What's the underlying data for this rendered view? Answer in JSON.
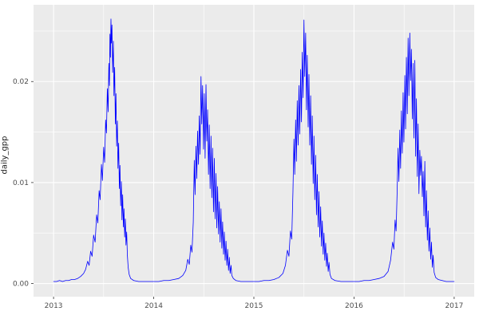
{
  "chart_data": {
    "type": "line",
    "title": "",
    "xlabel": "",
    "ylabel": "daily_gpp",
    "legend_position": "none",
    "grid": true,
    "panel_background": "#ebebeb",
    "figure_background": "#ffffff",
    "grid_color": "#ffffff",
    "tick_label_color": "#4d4d4d",
    "tick_mark_color": "#333333",
    "series_color": "#0000ff",
    "xlim": [
      2012.8,
      2017.2
    ],
    "ylim": [
      -0.0013,
      0.0276
    ],
    "x_ticks": {
      "values": [
        2013,
        2014,
        2015,
        2016,
        2017
      ],
      "labels": [
        "2013",
        "2014",
        "2015",
        "2016",
        "2017"
      ]
    },
    "x_minor": [
      2013.5,
      2014.5,
      2015.5,
      2016.5
    ],
    "y_ticks": {
      "values": [
        0,
        0.01,
        0.02
      ],
      "labels": [
        "0.00",
        "0.01",
        "0.02"
      ]
    },
    "y_minor": [
      0.005,
      0.015,
      0.025
    ],
    "series_name": "daily_gpp",
    "points": [
      [
        2013.0,
        0.0002
      ],
      [
        2013.03,
        0.0002
      ],
      [
        2013.06,
        0.0003
      ],
      [
        2013.09,
        0.0002
      ],
      [
        2013.12,
        0.0003
      ],
      [
        2013.15,
        0.0003
      ],
      [
        2013.18,
        0.0004
      ],
      [
        2013.21,
        0.0004
      ],
      [
        2013.24,
        0.0005
      ],
      [
        2013.27,
        0.0007
      ],
      [
        2013.3,
        0.001
      ],
      [
        2013.32,
        0.0014
      ],
      [
        2013.34,
        0.0022
      ],
      [
        2013.355,
        0.0018
      ],
      [
        2013.37,
        0.0032
      ],
      [
        2013.385,
        0.0027
      ],
      [
        2013.4,
        0.0048
      ],
      [
        2013.415,
        0.0041
      ],
      [
        2013.43,
        0.0068
      ],
      [
        2013.442,
        0.006
      ],
      [
        2013.455,
        0.0092
      ],
      [
        2013.465,
        0.0083
      ],
      [
        2013.478,
        0.0118
      ],
      [
        2013.488,
        0.0102
      ],
      [
        2013.5,
        0.0135
      ],
      [
        2013.51,
        0.012
      ],
      [
        2013.52,
        0.0162
      ],
      [
        2013.528,
        0.0149
      ],
      [
        2013.537,
        0.0193
      ],
      [
        2013.545,
        0.017
      ],
      [
        2013.552,
        0.0218
      ],
      [
        2013.558,
        0.0196
      ],
      [
        2013.563,
        0.0247
      ],
      [
        2013.568,
        0.0224
      ],
      [
        2013.573,
        0.0262
      ],
      [
        2013.578,
        0.0238
      ],
      [
        2013.583,
        0.0256
      ],
      [
        2013.59,
        0.0209
      ],
      [
        2013.597,
        0.024
      ],
      [
        2013.603,
        0.0186
      ],
      [
        2013.61,
        0.0214
      ],
      [
        2013.617,
        0.0158
      ],
      [
        2013.623,
        0.0188
      ],
      [
        2013.63,
        0.0136
      ],
      [
        2013.637,
        0.0161
      ],
      [
        2013.643,
        0.0114
      ],
      [
        2013.65,
        0.0139
      ],
      [
        2013.657,
        0.0094
      ],
      [
        2013.663,
        0.0117
      ],
      [
        2013.67,
        0.0077
      ],
      [
        2013.677,
        0.0101
      ],
      [
        2013.683,
        0.0063
      ],
      [
        2013.69,
        0.0088
      ],
      [
        2013.697,
        0.0056
      ],
      [
        2013.703,
        0.0074
      ],
      [
        2013.71,
        0.0046
      ],
      [
        2013.717,
        0.0064
      ],
      [
        2013.723,
        0.0038
      ],
      [
        2013.73,
        0.0051
      ],
      [
        2013.737,
        0.0028
      ],
      [
        2013.745,
        0.0016
      ],
      [
        2013.755,
        0.0009
      ],
      [
        2013.77,
        0.0005
      ],
      [
        2013.8,
        0.0003
      ],
      [
        2013.85,
        0.0002
      ],
      [
        2013.9,
        0.0002
      ],
      [
        2013.95,
        0.0002
      ],
      [
        2014.0,
        0.0002
      ],
      [
        2014.05,
        0.0002
      ],
      [
        2014.1,
        0.0003
      ],
      [
        2014.15,
        0.0003
      ],
      [
        2014.2,
        0.0004
      ],
      [
        2014.25,
        0.0005
      ],
      [
        2014.29,
        0.0008
      ],
      [
        2014.32,
        0.0013
      ],
      [
        2014.34,
        0.0024
      ],
      [
        2014.355,
        0.0019
      ],
      [
        2014.37,
        0.0038
      ],
      [
        2014.382,
        0.0031
      ],
      [
        2014.395,
        0.0061
      ],
      [
        2014.405,
        0.0122
      ],
      [
        2014.413,
        0.0088
      ],
      [
        2014.422,
        0.0136
      ],
      [
        2014.43,
        0.0104
      ],
      [
        2014.438,
        0.0151
      ],
      [
        2014.447,
        0.0118
      ],
      [
        2014.455,
        0.0166
      ],
      [
        2014.463,
        0.0128
      ],
      [
        2014.472,
        0.0205
      ],
      [
        2014.48,
        0.0158
      ],
      [
        2014.488,
        0.0196
      ],
      [
        2014.497,
        0.0133
      ],
      [
        2014.505,
        0.0188
      ],
      [
        2014.513,
        0.0124
      ],
      [
        2014.522,
        0.0197
      ],
      [
        2014.53,
        0.0141
      ],
      [
        2014.538,
        0.0172
      ],
      [
        2014.547,
        0.0108
      ],
      [
        2014.555,
        0.0157
      ],
      [
        2014.563,
        0.0094
      ],
      [
        2014.572,
        0.0146
      ],
      [
        2014.58,
        0.0085
      ],
      [
        2014.588,
        0.0134
      ],
      [
        2014.597,
        0.0071
      ],
      [
        2014.605,
        0.0124
      ],
      [
        2014.613,
        0.0064
      ],
      [
        2014.622,
        0.0109
      ],
      [
        2014.63,
        0.0055
      ],
      [
        2014.638,
        0.0096
      ],
      [
        2014.647,
        0.0049
      ],
      [
        2014.655,
        0.0081
      ],
      [
        2014.663,
        0.0041
      ],
      [
        2014.672,
        0.0074
      ],
      [
        2014.68,
        0.0035
      ],
      [
        2014.688,
        0.0061
      ],
      [
        2014.697,
        0.0029
      ],
      [
        2014.705,
        0.0051
      ],
      [
        2014.713,
        0.0023
      ],
      [
        2014.722,
        0.0042
      ],
      [
        2014.73,
        0.0018
      ],
      [
        2014.738,
        0.0034
      ],
      [
        2014.747,
        0.0013
      ],
      [
        2014.755,
        0.0026
      ],
      [
        2014.763,
        0.001
      ],
      [
        2014.772,
        0.0018
      ],
      [
        2014.78,
        0.0008
      ],
      [
        2014.795,
        0.0005
      ],
      [
        2014.82,
        0.0003
      ],
      [
        2014.87,
        0.0002
      ],
      [
        2014.93,
        0.0002
      ],
      [
        2015.0,
        0.0002
      ],
      [
        2015.05,
        0.0002
      ],
      [
        2015.1,
        0.0003
      ],
      [
        2015.15,
        0.0003
      ],
      [
        2015.2,
        0.0004
      ],
      [
        2015.25,
        0.0006
      ],
      [
        2015.29,
        0.001
      ],
      [
        2015.315,
        0.0018
      ],
      [
        2015.335,
        0.0033
      ],
      [
        2015.35,
        0.0027
      ],
      [
        2015.365,
        0.0052
      ],
      [
        2015.378,
        0.0044
      ],
      [
        2015.39,
        0.009
      ],
      [
        2015.4,
        0.0143
      ],
      [
        2015.408,
        0.0108
      ],
      [
        2015.417,
        0.0162
      ],
      [
        2015.425,
        0.0121
      ],
      [
        2015.433,
        0.0181
      ],
      [
        2015.442,
        0.0137
      ],
      [
        2015.45,
        0.0196
      ],
      [
        2015.458,
        0.0148
      ],
      [
        2015.467,
        0.0212
      ],
      [
        2015.475,
        0.016
      ],
      [
        2015.483,
        0.0229
      ],
      [
        2015.492,
        0.0184
      ],
      [
        2015.5,
        0.0261
      ],
      [
        2015.508,
        0.0205
      ],
      [
        2015.517,
        0.0248
      ],
      [
        2015.525,
        0.0172
      ],
      [
        2015.533,
        0.0226
      ],
      [
        2015.542,
        0.0155
      ],
      [
        2015.55,
        0.0207
      ],
      [
        2015.558,
        0.0137
      ],
      [
        2015.567,
        0.0186
      ],
      [
        2015.575,
        0.0118
      ],
      [
        2015.583,
        0.0166
      ],
      [
        2015.592,
        0.0099
      ],
      [
        2015.6,
        0.0146
      ],
      [
        2015.608,
        0.0083
      ],
      [
        2015.617,
        0.0127
      ],
      [
        2015.625,
        0.0068
      ],
      [
        2015.633,
        0.0108
      ],
      [
        2015.642,
        0.0056
      ],
      [
        2015.65,
        0.0091
      ],
      [
        2015.658,
        0.0046
      ],
      [
        2015.667,
        0.0076
      ],
      [
        2015.675,
        0.0037
      ],
      [
        2015.683,
        0.0062
      ],
      [
        2015.692,
        0.0029
      ],
      [
        2015.7,
        0.005
      ],
      [
        2015.708,
        0.0023
      ],
      [
        2015.717,
        0.004
      ],
      [
        2015.725,
        0.0017
      ],
      [
        2015.733,
        0.003
      ],
      [
        2015.742,
        0.0012
      ],
      [
        2015.75,
        0.0021
      ],
      [
        2015.76,
        0.0009
      ],
      [
        2015.775,
        0.0005
      ],
      [
        2015.81,
        0.0003
      ],
      [
        2015.87,
        0.0002
      ],
      [
        2015.93,
        0.0002
      ],
      [
        2016.0,
        0.0002
      ],
      [
        2016.05,
        0.0002
      ],
      [
        2016.1,
        0.0003
      ],
      [
        2016.15,
        0.0003
      ],
      [
        2016.2,
        0.0004
      ],
      [
        2016.25,
        0.0005
      ],
      [
        2016.3,
        0.0007
      ],
      [
        2016.34,
        0.0012
      ],
      [
        2016.365,
        0.0023
      ],
      [
        2016.385,
        0.0041
      ],
      [
        2016.398,
        0.0034
      ],
      [
        2016.41,
        0.0063
      ],
      [
        2016.42,
        0.0052
      ],
      [
        2016.43,
        0.0089
      ],
      [
        2016.44,
        0.0134
      ],
      [
        2016.448,
        0.0101
      ],
      [
        2016.457,
        0.0152
      ],
      [
        2016.465,
        0.0114
      ],
      [
        2016.473,
        0.0171
      ],
      [
        2016.482,
        0.0129
      ],
      [
        2016.49,
        0.0189
      ],
      [
        2016.498,
        0.014
      ],
      [
        2016.507,
        0.0206
      ],
      [
        2016.515,
        0.0153
      ],
      [
        2016.523,
        0.0224
      ],
      [
        2016.532,
        0.0168
      ],
      [
        2016.54,
        0.0243
      ],
      [
        2016.548,
        0.0186
      ],
      [
        2016.557,
        0.0248
      ],
      [
        2016.565,
        0.0201
      ],
      [
        2016.573,
        0.0232
      ],
      [
        2016.582,
        0.0163
      ],
      [
        2016.59,
        0.0218
      ],
      [
        2016.598,
        0.0144
      ],
      [
        2016.607,
        0.0221
      ],
      [
        2016.615,
        0.0126
      ],
      [
        2016.623,
        0.0183
      ],
      [
        2016.632,
        0.0106
      ],
      [
        2016.64,
        0.0158
      ],
      [
        2016.648,
        0.0089
      ],
      [
        2016.657,
        0.0132
      ],
      [
        2016.665,
        0.0107
      ],
      [
        2016.673,
        0.0126
      ],
      [
        2016.682,
        0.0086
      ],
      [
        2016.69,
        0.0111
      ],
      [
        2016.698,
        0.0067
      ],
      [
        2016.707,
        0.0121
      ],
      [
        2016.715,
        0.0056
      ],
      [
        2016.723,
        0.0092
      ],
      [
        2016.732,
        0.0043
      ],
      [
        2016.74,
        0.0072
      ],
      [
        2016.748,
        0.0032
      ],
      [
        2016.757,
        0.0055
      ],
      [
        2016.765,
        0.0024
      ],
      [
        2016.773,
        0.0041
      ],
      [
        2016.782,
        0.0016
      ],
      [
        2016.79,
        0.0028
      ],
      [
        2016.8,
        0.0011
      ],
      [
        2016.815,
        0.0006
      ],
      [
        2016.84,
        0.0004
      ],
      [
        2016.88,
        0.0003
      ],
      [
        2016.92,
        0.0002
      ],
      [
        2016.96,
        0.0002
      ],
      [
        2017.0,
        0.0002
      ]
    ]
  }
}
